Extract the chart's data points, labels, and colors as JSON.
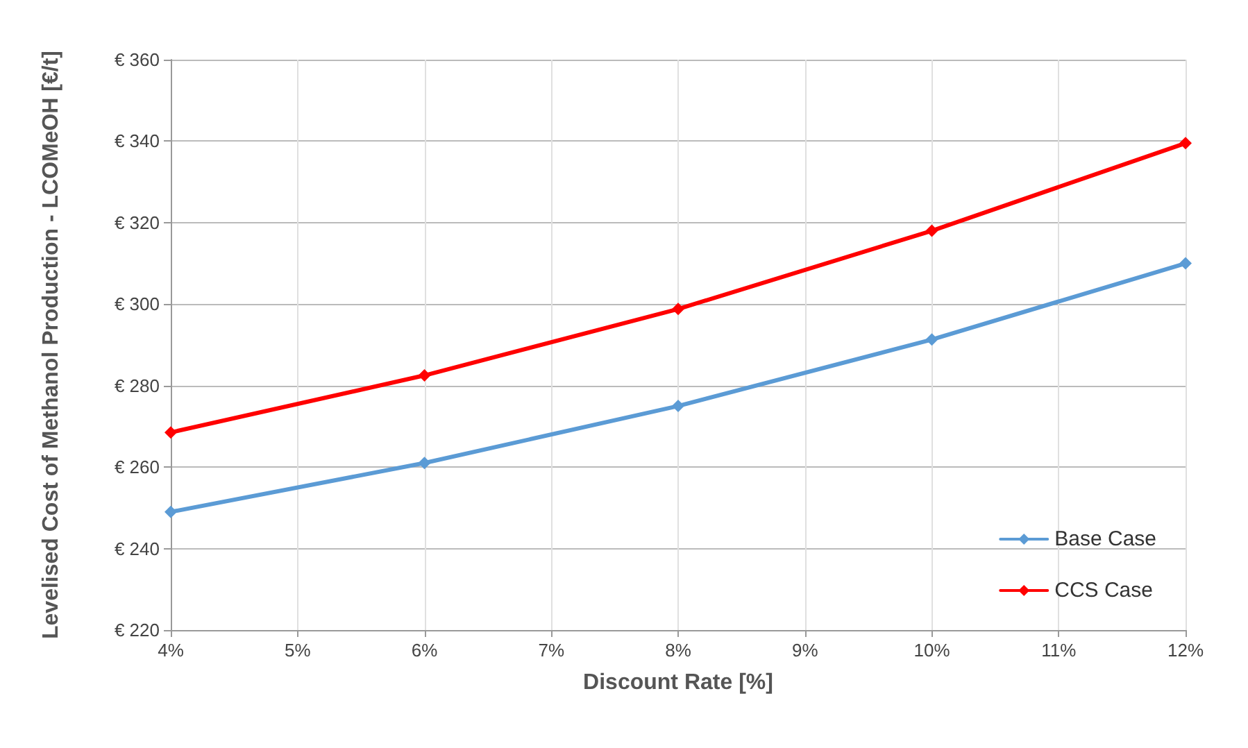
{
  "chart_data": {
    "type": "line",
    "xlabel": "Discount Rate [%]",
    "ylabel": "Levelised Cost of Methanol Production - LCOMeOH [€/t]",
    "x": [
      4,
      6,
      8,
      10,
      12
    ],
    "series": [
      {
        "name": "Base Case",
        "color": "#5b9bd5",
        "values": [
          249,
          261,
          275,
          291.3,
          310
        ]
      },
      {
        "name": "CCS Case",
        "color": "#ff0000",
        "values": [
          268.5,
          282.5,
          298.8,
          318,
          339.5
        ]
      }
    ],
    "xlim": [
      4,
      12
    ],
    "xticks": [
      {
        "value": 4,
        "label": "4%"
      },
      {
        "value": 5,
        "label": "5%"
      },
      {
        "value": 6,
        "label": "6%"
      },
      {
        "value": 7,
        "label": "7%"
      },
      {
        "value": 8,
        "label": "8%"
      },
      {
        "value": 9,
        "label": "9%"
      },
      {
        "value": 10,
        "label": "10%"
      },
      {
        "value": 11,
        "label": "11%"
      },
      {
        "value": 12,
        "label": "12%"
      }
    ],
    "ylim": [
      220,
      360
    ],
    "yticks": [
      {
        "value": 220,
        "label": "€ 220"
      },
      {
        "value": 240,
        "label": "€ 240"
      },
      {
        "value": 260,
        "label": "€ 260"
      },
      {
        "value": 280,
        "label": "€ 280"
      },
      {
        "value": 300,
        "label": "€ 300"
      },
      {
        "value": 320,
        "label": "€ 320"
      },
      {
        "value": 340,
        "label": "€ 340"
      },
      {
        "value": 360,
        "label": "€ 360"
      }
    ],
    "grid": true,
    "legend": "bottom right",
    "marker": "diamond",
    "line_style": "solid"
  }
}
